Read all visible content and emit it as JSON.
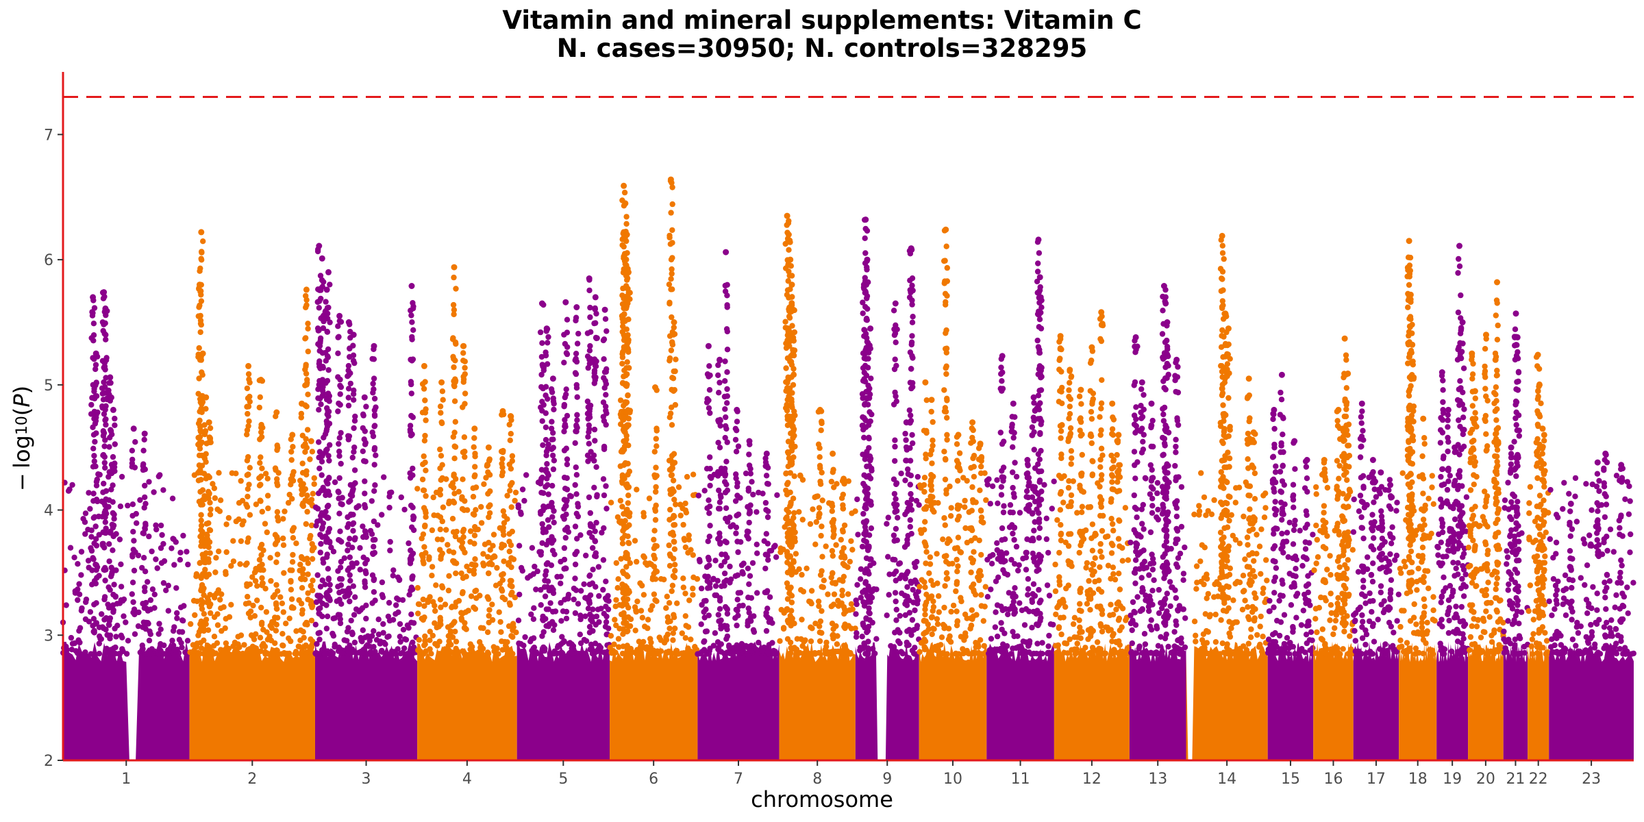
{
  "chart_data": {
    "type": "scatter",
    "title": "Vitamin and mineral supplements: Vitamin C",
    "subtitle": "N. cases=30950; N. controls=328295",
    "xlabel": "chromosome",
    "ylabel": "− log10(P)",
    "ylim": [
      2,
      7.5
    ],
    "yticks": [
      2,
      3,
      4,
      5,
      6,
      7
    ],
    "threshold": 7.3,
    "threshold_color": "#e31a1c",
    "axis_color": "#e31a1c",
    "colors": [
      "#8b008b",
      "#f07800"
    ],
    "grid": false,
    "legend": "none",
    "chromosomes": [
      {
        "label": "1",
        "start": 0,
        "end": 0.0805,
        "gap": [
          0.0415,
          0.0465
        ],
        "peaks": [
          [
            0.019,
            5.7
          ],
          [
            0.021,
            5.25
          ],
          [
            0.026,
            5.74
          ],
          [
            0.027,
            5.61
          ],
          [
            0.03,
            5.06
          ],
          [
            0.032,
            4.8
          ],
          [
            0.045,
            4.65
          ],
          [
            0.052,
            4.61
          ]
        ]
      },
      {
        "label": "2",
        "start": 0.0805,
        "end": 0.1605,
        "peaks": [
          [
            0.087,
            5.8
          ],
          [
            0.088,
            6.22
          ],
          [
            0.089,
            5.25
          ],
          [
            0.091,
            4.9
          ],
          [
            0.093,
            4.7
          ],
          [
            0.118,
            5.15
          ],
          [
            0.126,
            5.04
          ],
          [
            0.136,
            4.78
          ],
          [
            0.146,
            4.6
          ],
          [
            0.152,
            4.85
          ],
          [
            0.155,
            5.76
          ],
          [
            0.158,
            4.55
          ]
        ]
      },
      {
        "label": "3",
        "start": 0.1605,
        "end": 0.2255,
        "peaks": [
          [
            0.163,
            6.11
          ],
          [
            0.165,
            6.01
          ],
          [
            0.168,
            5.76
          ],
          [
            0.169,
            5.9
          ],
          [
            0.176,
            5.55
          ],
          [
            0.182,
            5.5
          ],
          [
            0.185,
            5.4
          ],
          [
            0.192,
            4.9
          ],
          [
            0.198,
            5.31
          ],
          [
            0.222,
            5.79
          ]
        ]
      },
      {
        "label": "4",
        "start": 0.2255,
        "end": 0.289,
        "peaks": [
          [
            0.23,
            5.15
          ],
          [
            0.249,
            5.94
          ],
          [
            0.255,
            5.31
          ],
          [
            0.241,
            5.02
          ],
          [
            0.262,
            4.65
          ],
          [
            0.271,
            4.5
          ],
          [
            0.28,
            4.79
          ],
          [
            0.285,
            4.75
          ]
        ]
      },
      {
        "label": "5",
        "start": 0.289,
        "end": 0.348,
        "peaks": [
          [
            0.305,
            5.65
          ],
          [
            0.308,
            5.45
          ],
          [
            0.312,
            5.05
          ],
          [
            0.32,
            5.66
          ],
          [
            0.327,
            5.62
          ],
          [
            0.335,
            5.85
          ],
          [
            0.339,
            5.7
          ],
          [
            0.345,
            5.6
          ]
        ]
      },
      {
        "label": "6",
        "start": 0.348,
        "end": 0.404,
        "peaks": [
          [
            0.357,
            6.59
          ],
          [
            0.358,
            6.45
          ],
          [
            0.359,
            6.2
          ],
          [
            0.36,
            5.9
          ],
          [
            0.356,
            5.55
          ],
          [
            0.387,
            6.64
          ],
          [
            0.389,
            5.5
          ],
          [
            0.377,
            4.98
          ]
        ]
      },
      {
        "label": "7",
        "start": 0.404,
        "end": 0.456,
        "peaks": [
          [
            0.411,
            5.31
          ],
          [
            0.418,
            5.2
          ],
          [
            0.422,
            6.06
          ],
          [
            0.429,
            4.8
          ],
          [
            0.437,
            4.55
          ],
          [
            0.448,
            4.45
          ]
        ]
      },
      {
        "label": "8",
        "start": 0.456,
        "end": 0.5045,
        "peaks": [
          [
            0.461,
            6.35
          ],
          [
            0.462,
            6.2
          ],
          [
            0.463,
            6.0
          ],
          [
            0.464,
            5.8
          ],
          [
            0.465,
            5.6
          ],
          [
            0.482,
            4.8
          ],
          [
            0.49,
            4.45
          ],
          [
            0.497,
            4.25
          ]
        ]
      },
      {
        "label": "9",
        "start": 0.5045,
        "end": 0.545,
        "gap": [
          0.518,
          0.524
        ],
        "peaks": [
          [
            0.511,
            6.32
          ],
          [
            0.512,
            6.0
          ],
          [
            0.514,
            5.45
          ],
          [
            0.51,
            5.8
          ],
          [
            0.53,
            5.65
          ],
          [
            0.54,
            6.09
          ],
          [
            0.537,
            4.7
          ]
        ]
      },
      {
        "label": "10",
        "start": 0.545,
        "end": 0.588,
        "peaks": [
          [
            0.549,
            5.02
          ],
          [
            0.553,
            4.88
          ],
          [
            0.562,
            6.24
          ],
          [
            0.57,
            4.6
          ],
          [
            0.579,
            4.7
          ],
          [
            0.584,
            4.53
          ]
        ]
      },
      {
        "label": "11",
        "start": 0.588,
        "end": 0.631,
        "peaks": [
          [
            0.598,
            5.23
          ],
          [
            0.605,
            4.85
          ],
          [
            0.614,
            4.4
          ],
          [
            0.621,
            6.16
          ],
          [
            0.622,
            5.86
          ],
          [
            0.618,
            4.9
          ]
        ]
      },
      {
        "label": "12",
        "start": 0.631,
        "end": 0.679,
        "peaks": [
          [
            0.635,
            5.39
          ],
          [
            0.641,
            5.12
          ],
          [
            0.648,
            4.96
          ],
          [
            0.655,
            5.3
          ],
          [
            0.661,
            5.58
          ],
          [
            0.668,
            4.85
          ],
          [
            0.672,
            4.6
          ]
        ]
      },
      {
        "label": "13",
        "start": 0.679,
        "end": 0.715,
        "peaks": [
          [
            0.683,
            5.38
          ],
          [
            0.687,
            5.02
          ],
          [
            0.693,
            4.85
          ],
          [
            0.701,
            5.79
          ],
          [
            0.702,
            5.65
          ],
          [
            0.703,
            5.5
          ],
          [
            0.709,
            5.2
          ]
        ]
      },
      {
        "label": "14",
        "start": 0.715,
        "end": 0.767,
        "gap": [
          0.715,
          0.72
        ],
        "peaks": [
          [
            0.738,
            6.19
          ],
          [
            0.74,
            5.57
          ],
          [
            0.742,
            5.45
          ],
          [
            0.738,
            4.97
          ],
          [
            0.755,
            5.05
          ],
          [
            0.758,
            4.62
          ]
        ]
      },
      {
        "label": "15",
        "start": 0.767,
        "end": 0.796,
        "peaks": [
          [
            0.771,
            4.8
          ],
          [
            0.776,
            5.08
          ],
          [
            0.784,
            4.55
          ],
          [
            0.792,
            4.4
          ]
        ]
      },
      {
        "label": "16",
        "start": 0.796,
        "end": 0.8215,
        "peaks": [
          [
            0.803,
            4.4
          ],
          [
            0.812,
            4.8
          ],
          [
            0.816,
            5.37
          ],
          [
            0.818,
            5.09
          ],
          [
            0.815,
            4.65
          ]
        ]
      },
      {
        "label": "17",
        "start": 0.8215,
        "end": 0.8505,
        "peaks": [
          [
            0.827,
            4.85
          ],
          [
            0.834,
            4.4
          ],
          [
            0.839,
            4.3
          ],
          [
            0.845,
            4.2
          ]
        ]
      },
      {
        "label": "18",
        "start": 0.8505,
        "end": 0.8745,
        "peaks": [
          [
            0.857,
            6.15
          ],
          [
            0.858,
            5.72
          ],
          [
            0.859,
            5.32
          ],
          [
            0.857,
            4.82
          ],
          [
            0.866,
            4.73
          ]
        ]
      },
      {
        "label": "19",
        "start": 0.8745,
        "end": 0.8945,
        "peaks": [
          [
            0.878,
            5.1
          ],
          [
            0.882,
            4.8
          ],
          [
            0.886,
            4.5
          ],
          [
            0.889,
            6.11
          ],
          [
            0.891,
            5.5
          ]
        ]
      },
      {
        "label": "20",
        "start": 0.8945,
        "end": 0.917,
        "peaks": [
          [
            0.897,
            5.25
          ],
          [
            0.899,
            4.95
          ],
          [
            0.906,
            5.4
          ],
          [
            0.913,
            5.82
          ],
          [
            0.912,
            5.2
          ]
        ]
      },
      {
        "label": "21",
        "start": 0.917,
        "end": 0.9325,
        "peaks": [
          [
            0.925,
            5.57
          ],
          [
            0.926,
            5.38
          ],
          [
            0.922,
            4.5
          ]
        ]
      },
      {
        "label": "22",
        "start": 0.9325,
        "end": 0.946,
        "peaks": [
          [
            0.939,
            5.24
          ],
          [
            0.94,
            5.0
          ],
          [
            0.942,
            4.65
          ],
          [
            0.943,
            4.6
          ]
        ]
      },
      {
        "label": "23",
        "start": 0.946,
        "end": 1.0,
        "peaks": [
          [
            0.96,
            4.05
          ],
          [
            0.977,
            4.38
          ],
          [
            0.982,
            4.45
          ],
          [
            0.992,
            4.36
          ]
        ]
      }
    ]
  }
}
